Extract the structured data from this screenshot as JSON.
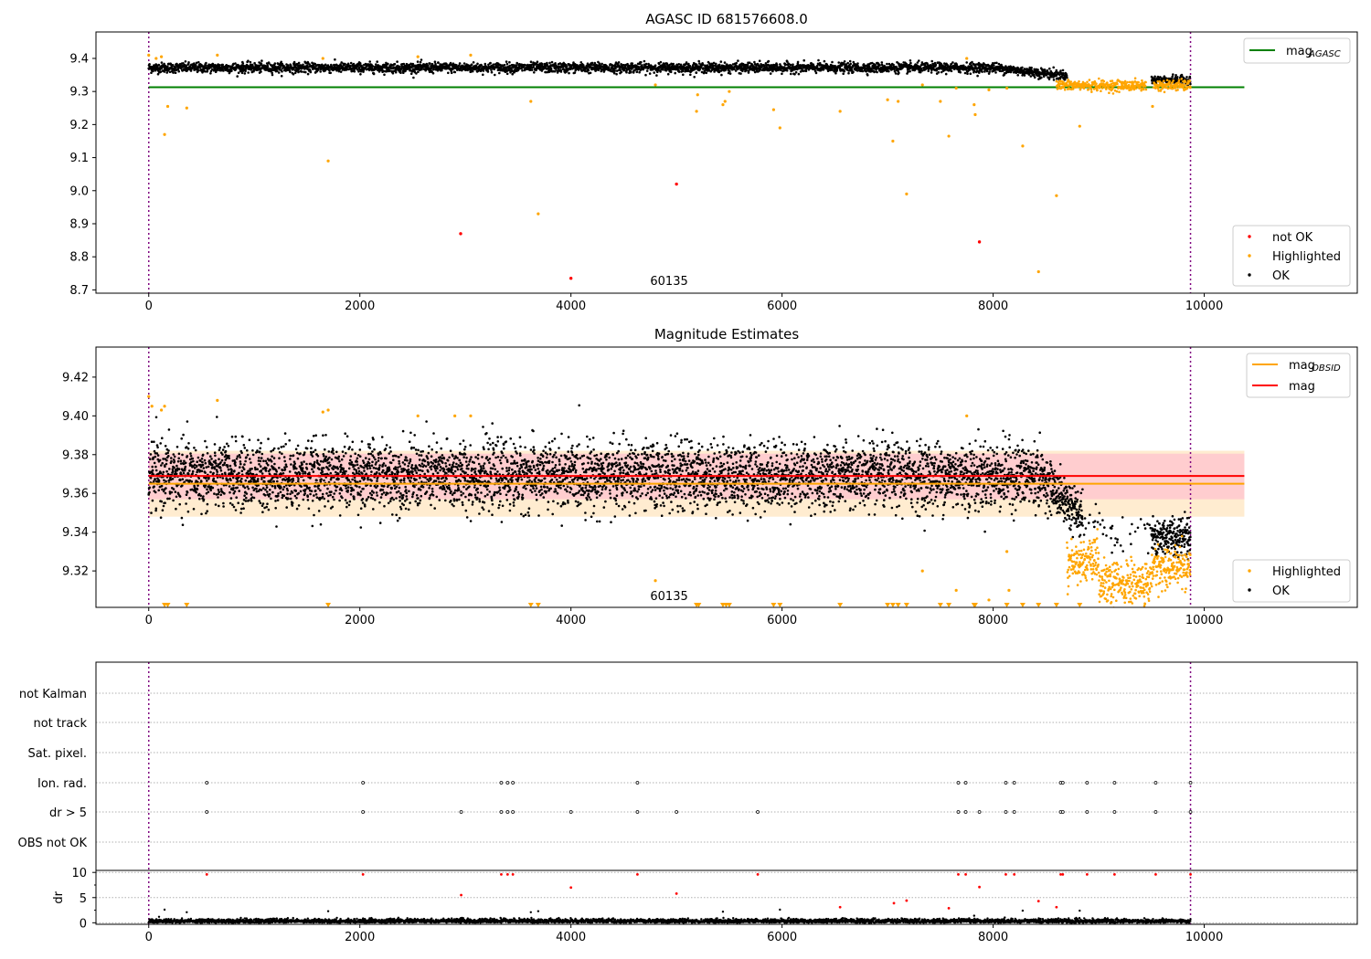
{
  "chart_data": [
    {
      "type": "scatter",
      "title": "AGASC ID 681576608.0",
      "annotation": "60135",
      "xlim": [
        -500,
        11450
      ],
      "ylim": [
        8.69,
        9.48
      ],
      "x_ticks": [
        0,
        2000,
        4000,
        6000,
        8000,
        10000
      ],
      "y_ticks": [
        8.7,
        8.8,
        8.9,
        9.0,
        9.1,
        9.2,
        9.3,
        9.4
      ],
      "vlines": [
        0,
        9870
      ],
      "hlines": [
        {
          "name": "mag_AGASC",
          "y": 9.313,
          "x_range": [
            0,
            10380
          ],
          "color": "#008000"
        }
      ],
      "series": [
        {
          "name": "not OK",
          "color": "#ff0000",
          "points": [
            [
              2955,
              8.87
            ],
            [
              4000,
              8.735
            ],
            [
              5000,
              9.02
            ],
            [
              7870,
              8.845
            ]
          ]
        },
        {
          "name": "Highlighted",
          "color": "#ffa500",
          "points": [
            [
              0,
              9.41
            ],
            [
              70,
              9.4
            ],
            [
              120,
              9.405
            ],
            [
              150,
              9.17
            ],
            [
              180,
              9.255
            ],
            [
              360,
              9.25
            ],
            [
              650,
              9.41
            ],
            [
              1650,
              9.4
            ],
            [
              1700,
              9.09
            ],
            [
              2550,
              9.405
            ],
            [
              3050,
              9.41
            ],
            [
              3620,
              9.27
            ],
            [
              3690,
              8.93
            ],
            [
              4800,
              9.32
            ],
            [
              5190,
              9.24
            ],
            [
              5200,
              9.29
            ],
            [
              5440,
              9.26
            ],
            [
              5460,
              9.27
            ],
            [
              5500,
              9.3
            ],
            [
              5920,
              9.245
            ],
            [
              5980,
              9.19
            ],
            [
              6550,
              9.24
            ],
            [
              7000,
              9.275
            ],
            [
              7050,
              9.15
            ],
            [
              7100,
              9.27
            ],
            [
              7180,
              8.99
            ],
            [
              7330,
              9.32
            ],
            [
              7500,
              9.27
            ],
            [
              7580,
              9.165
            ],
            [
              7650,
              9.31
            ],
            [
              7750,
              9.4
            ],
            [
              7820,
              9.26
            ],
            [
              7830,
              9.23
            ],
            [
              7960,
              9.305
            ],
            [
              8130,
              9.31
            ],
            [
              8280,
              9.135
            ],
            [
              8430,
              8.755
            ],
            [
              8600,
              8.985
            ],
            [
              8820,
              9.195
            ],
            [
              9510,
              9.255
            ]
          ]
        },
        {
          "name": "OK",
          "color": "#000000",
          "points": []
        }
      ],
      "legend": [
        {
          "label": "not OK",
          "color": "#ff0000"
        },
        {
          "label": "Highlighted",
          "color": "#ffa500"
        },
        {
          "label": "OK",
          "color": "#000000"
        }
      ],
      "legend_top": {
        "label": "mag",
        "sub": "AGASC",
        "color": "#008000"
      }
    },
    {
      "type": "scatter",
      "title": "Magnitude Estimates",
      "annotation": "60135",
      "xlim": [
        -500,
        11450
      ],
      "ylim": [
        9.3012,
        9.4355
      ],
      "x_ticks": [
        0,
        2000,
        4000,
        6000,
        8000,
        10000
      ],
      "y_ticks": [
        9.32,
        9.34,
        9.36,
        9.38,
        9.4,
        9.42
      ],
      "vlines": [
        0,
        9870
      ],
      "bands": [
        {
          "color": "#ffe9c8",
          "y_range": [
            9.348,
            9.382
          ],
          "x_range": [
            0,
            10380
          ]
        },
        {
          "color": "#ffc8cf",
          "y_range": [
            9.357,
            9.3805
          ],
          "x_range": [
            0,
            10380
          ]
        }
      ],
      "hlines": [
        {
          "name": "mag_OBSID",
          "y": 9.365,
          "x_range": [
            0,
            10380
          ],
          "color": "#ffa500"
        },
        {
          "name": "mag",
          "y": 9.369,
          "x_range": [
            0,
            10380
          ],
          "color": "#ff0000"
        }
      ],
      "series": [
        {
          "name": "Highlighted",
          "color": "#ffa500",
          "points": [
            [
              0,
              9.41
            ],
            [
              30,
              9.405
            ],
            [
              120,
              9.403
            ],
            [
              150,
              9.405
            ],
            [
              650,
              9.408
            ],
            [
              1650,
              9.402
            ],
            [
              1700,
              9.403
            ],
            [
              2550,
              9.4
            ],
            [
              2900,
              9.4
            ],
            [
              3050,
              9.4
            ],
            [
              4800,
              9.315
            ],
            [
              7330,
              9.32
            ],
            [
              7650,
              9.31
            ],
            [
              7750,
              9.4
            ],
            [
              7960,
              9.305
            ],
            [
              8130,
              9.33
            ],
            [
              8150,
              9.31
            ]
          ]
        },
        {
          "name": "OK",
          "color": "#000000",
          "points": []
        }
      ],
      "offscale_markers_x": [
        150,
        180,
        360,
        1700,
        3620,
        3690,
        5190,
        5210,
        5440,
        5470,
        5500,
        5920,
        5980,
        6550,
        7000,
        7050,
        7100,
        7180,
        7500,
        7580,
        7820,
        7830,
        8130,
        8280,
        8430,
        8600,
        8820
      ],
      "legend": [
        {
          "label": "Highlighted",
          "color": "#ffa500"
        },
        {
          "label": "OK",
          "color": "#000000"
        }
      ],
      "legend_top": [
        {
          "label": "mag",
          "sub": "OBSID",
          "color": "#ffa500"
        },
        {
          "label": "mag",
          "sub": "",
          "color": "#ff0000"
        }
      ]
    },
    {
      "type": "scatter",
      "title": "",
      "xlim": [
        -500,
        11450
      ],
      "x_ticks": [
        0,
        2000,
        4000,
        6000,
        8000,
        10000
      ],
      "vlines": [
        0,
        9870
      ],
      "flag_rows": [
        "not Kalman",
        "not track",
        "Sat. pixel.",
        "Ion. rad.",
        "dr > 5",
        "OBS not OK"
      ],
      "flags": {
        "Ion. rad.": [
          550,
          2030,
          3340,
          3400,
          3450,
          4630,
          7670,
          7740,
          8120,
          8200,
          8640,
          8660,
          8890,
          9150,
          9540,
          9870
        ],
        "dr > 5": [
          550,
          2030,
          2960,
          3340,
          3400,
          3450,
          4000,
          4630,
          5000,
          5770,
          7670,
          7740,
          7870,
          8120,
          8200,
          8640,
          8660,
          8890,
          9150,
          9540,
          9870
        ]
      },
      "dr_ylabel": "dr",
      "dr_ylim": [
        -0.3,
        10.4
      ],
      "dr_y_ticks": [
        0,
        5,
        10
      ],
      "dr_high": [
        [
          550,
          9.6
        ],
        [
          2030,
          9.6
        ],
        [
          3340,
          9.6
        ],
        [
          3400,
          9.6
        ],
        [
          3450,
          9.6
        ],
        [
          4630,
          9.6
        ],
        [
          5770,
          9.6
        ],
        [
          7670,
          9.6
        ],
        [
          7740,
          9.6
        ],
        [
          8120,
          9.6
        ],
        [
          8200,
          9.6
        ],
        [
          8640,
          9.6
        ],
        [
          8660,
          9.6
        ],
        [
          8890,
          9.6
        ],
        [
          9150,
          9.6
        ],
        [
          9540,
          9.6
        ],
        [
          9870,
          9.6
        ],
        [
          2960,
          5.5
        ],
        [
          4000,
          7.0
        ],
        [
          5000,
          5.8
        ],
        [
          7870,
          7.1
        ],
        [
          7060,
          3.9
        ],
        [
          7180,
          4.4
        ],
        [
          8430,
          4.3
        ],
        [
          8600,
          3.1
        ],
        [
          6550,
          3.1
        ],
        [
          7580,
          2.9
        ]
      ],
      "dr_low": [
        [
          150,
          2.6
        ],
        [
          360,
          2.1
        ],
        [
          1700,
          2.3
        ],
        [
          3620,
          2.1
        ],
        [
          3690,
          2.3
        ],
        [
          5440,
          2.2
        ],
        [
          5980,
          2.6
        ],
        [
          7820,
          1.4
        ],
        [
          8280,
          2.4
        ],
        [
          8820,
          2.4
        ]
      ]
    }
  ]
}
